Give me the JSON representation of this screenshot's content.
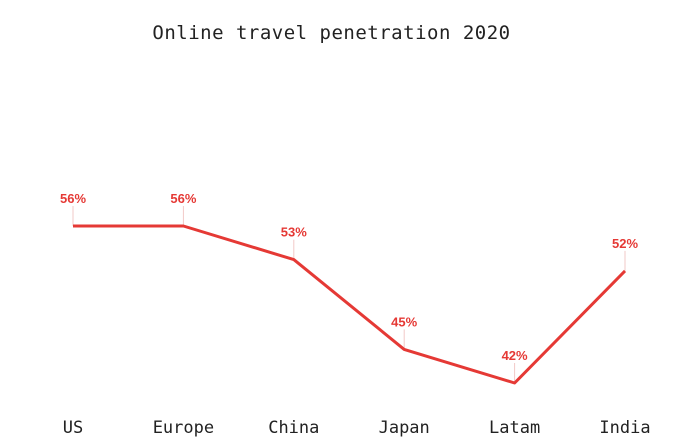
{
  "chart_data": {
    "type": "line",
    "title": "Online travel penetration 2020",
    "categories": [
      "US",
      "Europe",
      "China",
      "Japan",
      "Latam",
      "India"
    ],
    "series": [
      {
        "values": [
          56,
          56,
          53,
          45,
          42,
          52
        ],
        "labels": [
          "56%",
          "56%",
          "53%",
          "45%",
          "42%",
          "52%"
        ]
      }
    ],
    "xlabel": "",
    "ylabel": "",
    "ylim": [
      42,
      56
    ],
    "grid": false,
    "legend": "none",
    "colors": {
      "line": "#e53935",
      "label": "#e53935",
      "leader": "#f2c9c7",
      "text": "#222222"
    }
  }
}
